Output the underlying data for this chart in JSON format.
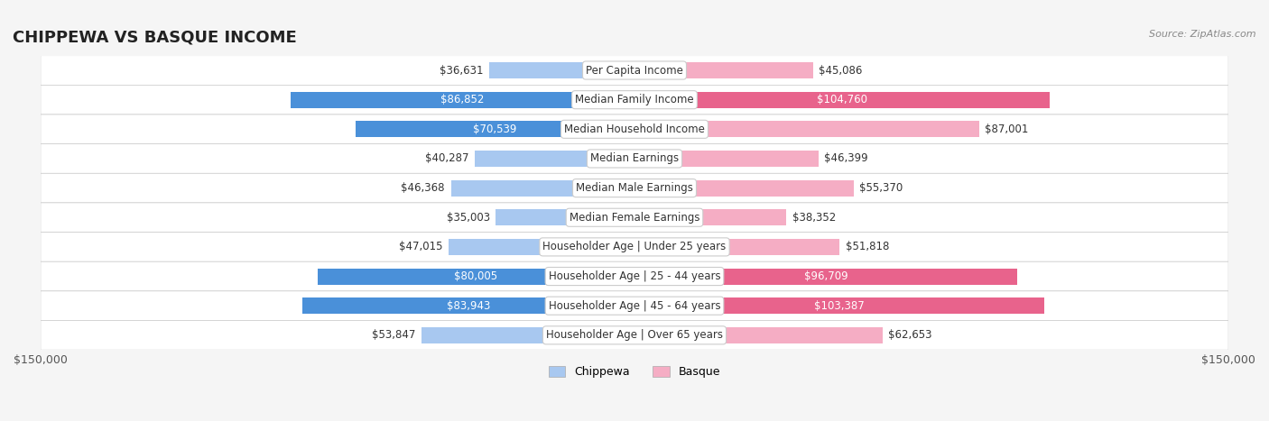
{
  "title": "CHIPPEWA VS BASQUE INCOME",
  "source": "Source: ZipAtlas.com",
  "categories": [
    "Per Capita Income",
    "Median Family Income",
    "Median Household Income",
    "Median Earnings",
    "Median Male Earnings",
    "Median Female Earnings",
    "Householder Age | Under 25 years",
    "Householder Age | 25 - 44 years",
    "Householder Age | 45 - 64 years",
    "Householder Age | Over 65 years"
  ],
  "chippewa_values": [
    36631,
    86852,
    70539,
    40287,
    46368,
    35003,
    47015,
    80005,
    83943,
    53847
  ],
  "basque_values": [
    45086,
    104760,
    87001,
    46399,
    55370,
    38352,
    51818,
    96709,
    103387,
    62653
  ],
  "chippewa_labels": [
    "$36,631",
    "$86,852",
    "$70,539",
    "$40,287",
    "$46,368",
    "$35,003",
    "$47,015",
    "$80,005",
    "$83,943",
    "$53,847"
  ],
  "basque_labels": [
    "$45,086",
    "$104,760",
    "$87,001",
    "$46,399",
    "$55,370",
    "$38,352",
    "$51,818",
    "$96,709",
    "$103,387",
    "$62,653"
  ],
  "chippewa_color_strong": "#4a90d9",
  "chippewa_color_light": "#a8c8f0",
  "basque_color_strong": "#e8638c",
  "basque_color_light": "#f5adc4",
  "max_value": 150000,
  "background_color": "#f5f5f5",
  "row_bg": "#ffffff",
  "legend_chippewa": "Chippewa",
  "legend_basque": "Basque",
  "title_fontsize": 13,
  "label_fontsize": 8.5,
  "category_fontsize": 8.5
}
